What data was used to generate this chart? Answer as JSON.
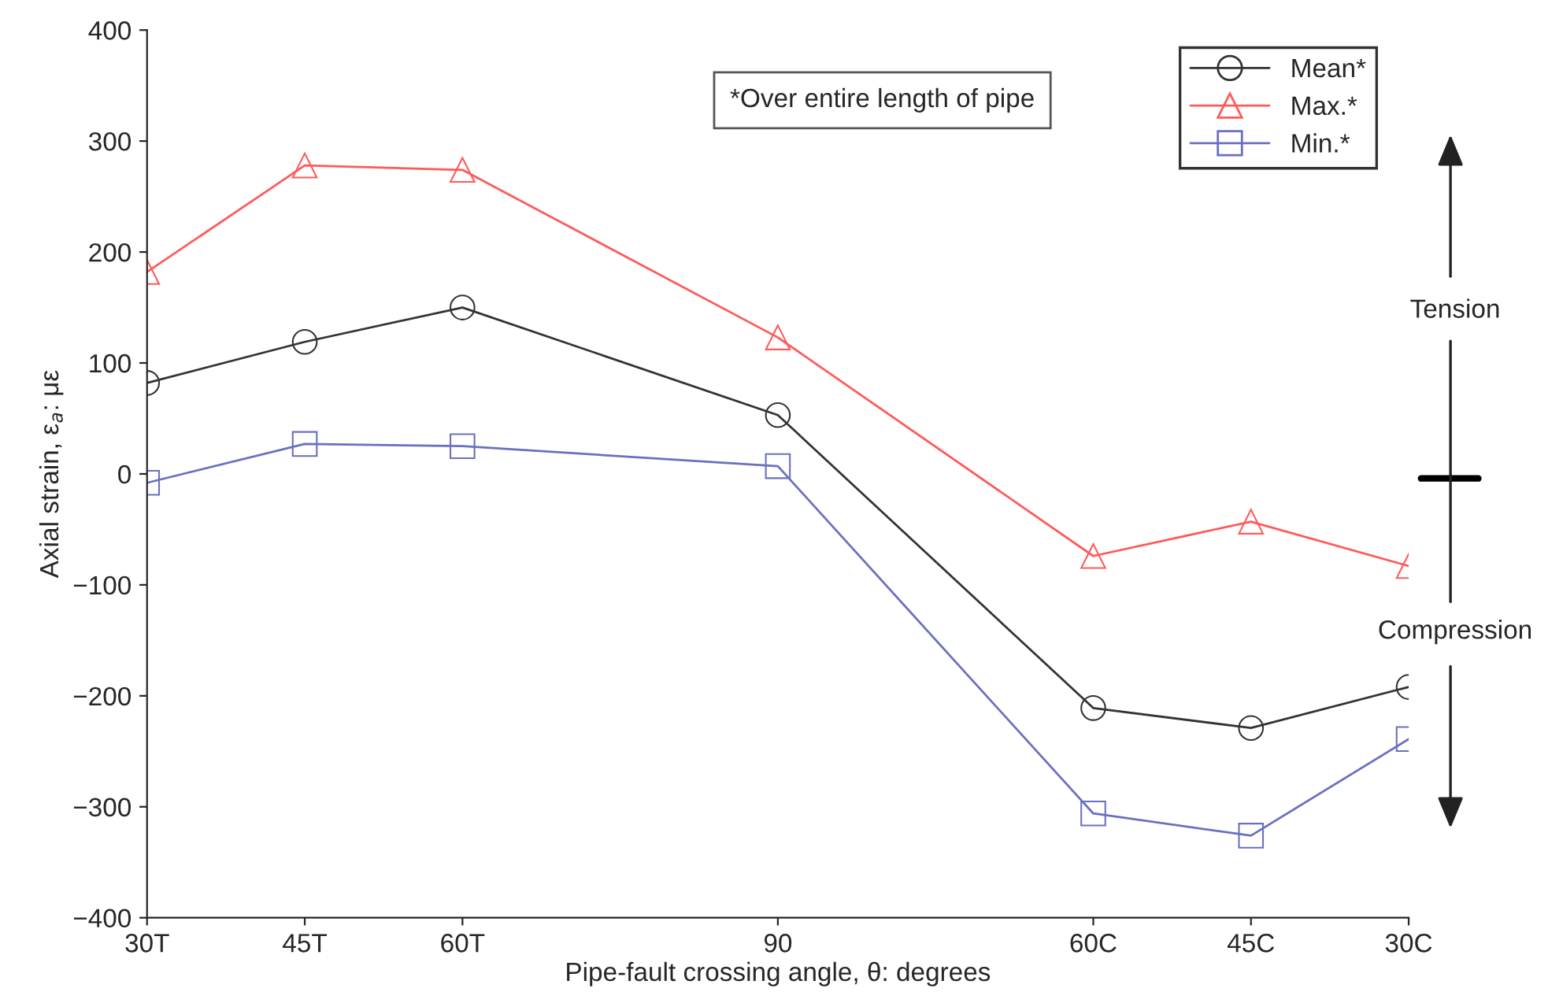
{
  "chart_data": {
    "type": "line",
    "xlabel": "Pipe-fault crossing angle, θ: degrees",
    "ylabel": "Axial strain, ε$_{a}$: με",
    "categories": [
      "30T",
      "45T",
      "60T",
      null,
      "90",
      null,
      "60C",
      "45C",
      "30C"
    ],
    "ylim": [
      -400,
      400
    ],
    "yticks": [
      -400,
      -300,
      -200,
      -100,
      0,
      100,
      200,
      300,
      400
    ],
    "series": [
      {
        "name": "Mean*",
        "color": "#333333",
        "marker": "circle",
        "values": [
          82,
          119,
          150,
          null,
          53,
          null,
          -211,
          -229,
          -192
        ]
      },
      {
        "name": "Max.*",
        "color": "#ff5a5a",
        "marker": "triangle",
        "values": [
          182,
          278,
          274,
          null,
          123,
          null,
          -74,
          -43,
          -83
        ]
      },
      {
        "name": "Min.*",
        "color": "#6a70c0",
        "marker": "square",
        "values": [
          -8,
          27,
          25,
          null,
          7,
          null,
          -306,
          -326,
          -239
        ]
      }
    ],
    "annotations": [
      "*Over entire length of pipe",
      "Tension",
      "Compression"
    ],
    "legend": "top right",
    "grid": false,
    "line_style": "solid"
  }
}
